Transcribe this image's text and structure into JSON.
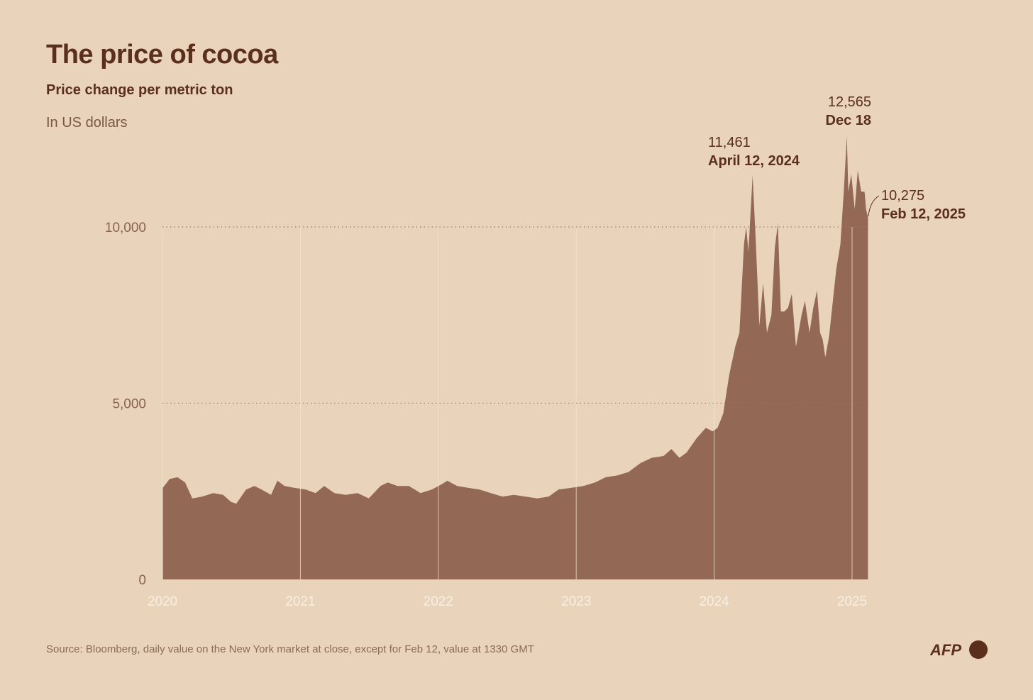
{
  "chart_data": {
    "type": "area",
    "title": "The price of cocoa",
    "subtitle": "Price change per metric ton",
    "ylabel": "In US dollars",
    "xlabel": "",
    "ylim": [
      0,
      12565
    ],
    "xlim": [
      "2020-01-01",
      "2025-02-12"
    ],
    "yticks": [
      {
        "value": 0,
        "label": "0"
      },
      {
        "value": 5000,
        "label": "5,000"
      },
      {
        "value": 10000,
        "label": "10,000"
      }
    ],
    "xticks": [
      "2020",
      "2021",
      "2022",
      "2023",
      "2024",
      "2025"
    ],
    "grid": {
      "horizontal": "dotted at 5,000 and 10,000",
      "vertical": "yearly"
    },
    "color": "#936854",
    "background": "#e9d3bb",
    "annotations": [
      {
        "value_label": "11,461",
        "date_label": "April 12, 2024",
        "date": "2024-04-12",
        "value": 11461
      },
      {
        "value_label": "12,565",
        "date_label": "Dec 18",
        "date": "2024-12-18",
        "value": 12565
      },
      {
        "value_label": "10,275",
        "date_label": "Feb 12, 2025",
        "date": "2025-02-12",
        "value": 10275
      }
    ],
    "points": [
      [
        "2020-01-02",
        2600
      ],
      [
        "2020-01-20",
        2850
      ],
      [
        "2020-02-10",
        2900
      ],
      [
        "2020-03-01",
        2750
      ],
      [
        "2020-03-20",
        2300
      ],
      [
        "2020-04-15",
        2350
      ],
      [
        "2020-05-15",
        2450
      ],
      [
        "2020-06-10",
        2400
      ],
      [
        "2020-07-01",
        2200
      ],
      [
        "2020-07-15",
        2150
      ],
      [
        "2020-08-10",
        2550
      ],
      [
        "2020-09-01",
        2650
      ],
      [
        "2020-09-20",
        2550
      ],
      [
        "2020-10-15",
        2400
      ],
      [
        "2020-11-01",
        2800
      ],
      [
        "2020-11-20",
        2650
      ],
      [
        "2020-12-15",
        2600
      ],
      [
        "2021-01-15",
        2550
      ],
      [
        "2021-02-10",
        2450
      ],
      [
        "2021-03-05",
        2650
      ],
      [
        "2021-04-01",
        2450
      ],
      [
        "2021-05-01",
        2400
      ],
      [
        "2021-06-01",
        2450
      ],
      [
        "2021-07-01",
        2300
      ],
      [
        "2021-08-01",
        2650
      ],
      [
        "2021-08-20",
        2750
      ],
      [
        "2021-09-15",
        2650
      ],
      [
        "2021-10-15",
        2650
      ],
      [
        "2021-11-15",
        2450
      ],
      [
        "2021-12-15",
        2550
      ],
      [
        "2022-01-10",
        2700
      ],
      [
        "2022-01-25",
        2800
      ],
      [
        "2022-02-20",
        2650
      ],
      [
        "2022-03-20",
        2600
      ],
      [
        "2022-04-20",
        2550
      ],
      [
        "2022-05-20",
        2450
      ],
      [
        "2022-06-20",
        2350
      ],
      [
        "2022-07-20",
        2400
      ],
      [
        "2022-08-20",
        2350
      ],
      [
        "2022-09-20",
        2300
      ],
      [
        "2022-10-20",
        2350
      ],
      [
        "2022-11-15",
        2550
      ],
      [
        "2022-12-20",
        2600
      ],
      [
        "2023-01-20",
        2650
      ],
      [
        "2023-02-20",
        2750
      ],
      [
        "2023-03-20",
        2900
      ],
      [
        "2023-04-20",
        2950
      ],
      [
        "2023-05-20",
        3050
      ],
      [
        "2023-06-20",
        3300
      ],
      [
        "2023-07-20",
        3450
      ],
      [
        "2023-08-20",
        3500
      ],
      [
        "2023-09-10",
        3700
      ],
      [
        "2023-10-01",
        3450
      ],
      [
        "2023-10-20",
        3600
      ],
      [
        "2023-11-15",
        4000
      ],
      [
        "2023-12-10",
        4300
      ],
      [
        "2023-12-28",
        4200
      ],
      [
        "2024-01-10",
        4300
      ],
      [
        "2024-01-25",
        4700
      ],
      [
        "2024-02-10",
        5800
      ],
      [
        "2024-02-26",
        6600
      ],
      [
        "2024-03-08",
        7000
      ],
      [
        "2024-03-20",
        9500
      ],
      [
        "2024-03-26",
        10000
      ],
      [
        "2024-04-01",
        9300
      ],
      [
        "2024-04-12",
        11461
      ],
      [
        "2024-04-20",
        9700
      ],
      [
        "2024-04-30",
        7200
      ],
      [
        "2024-05-10",
        8400
      ],
      [
        "2024-05-20",
        7000
      ],
      [
        "2024-06-01",
        7500
      ],
      [
        "2024-06-10",
        9400
      ],
      [
        "2024-06-18",
        10100
      ],
      [
        "2024-06-26",
        7600
      ],
      [
        "2024-07-05",
        7600
      ],
      [
        "2024-07-15",
        7700
      ],
      [
        "2024-07-25",
        8100
      ],
      [
        "2024-08-05",
        6600
      ],
      [
        "2024-08-20",
        7500
      ],
      [
        "2024-08-29",
        7900
      ],
      [
        "2024-09-10",
        7000
      ],
      [
        "2024-09-20",
        7700
      ],
      [
        "2024-09-30",
        8200
      ],
      [
        "2024-10-08",
        7000
      ],
      [
        "2024-10-15",
        6800
      ],
      [
        "2024-10-22",
        6300
      ],
      [
        "2024-11-01",
        6900
      ],
      [
        "2024-11-10",
        7800
      ],
      [
        "2024-11-20",
        8800
      ],
      [
        "2024-12-01",
        9500
      ],
      [
        "2024-12-10",
        11000
      ],
      [
        "2024-12-18",
        12565
      ],
      [
        "2024-12-22",
        11000
      ],
      [
        "2024-12-30",
        11500
      ],
      [
        "2025-01-08",
        10500
      ],
      [
        "2025-01-16",
        11600
      ],
      [
        "2025-01-25",
        11000
      ],
      [
        "2025-02-03",
        11000
      ],
      [
        "2025-02-07",
        10500
      ],
      [
        "2025-02-12",
        10275
      ]
    ]
  },
  "source": "Source: Bloomberg, daily value on the New York market at close, except for Feb 12, value at 1330 GMT",
  "logo_text": "AFP"
}
